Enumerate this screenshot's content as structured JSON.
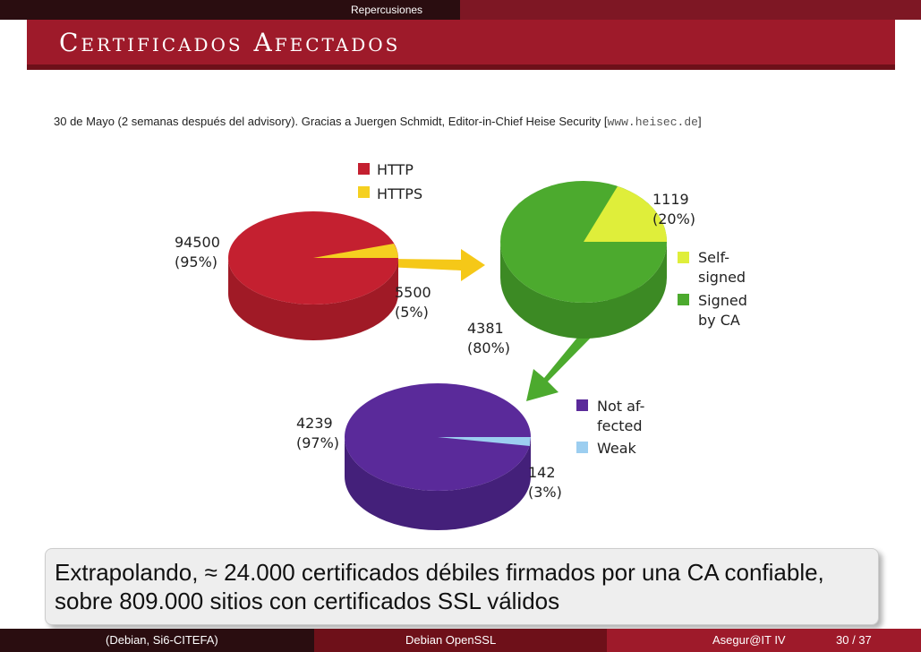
{
  "header": {
    "section": "Repercusiones"
  },
  "title": "Certificados Afectados",
  "subtitle": {
    "text": "30 de Mayo (2 semanas después del advisory). Gracias a Juergen Schmidt, Editor-in-Chief Heise Security [",
    "url": "www.heisec.de",
    "close": "]"
  },
  "chart_data": [
    {
      "type": "pie",
      "slices": [
        {
          "label": "HTTP",
          "value": 94500,
          "value_label": "94500",
          "pct_label": "(95%)",
          "color": "#c42030"
        },
        {
          "label": "HTTPS",
          "value": 5500,
          "value_label": "5500",
          "pct_label": "(5%)",
          "color": "#f5d020"
        }
      ],
      "legend": [
        "HTTP",
        "HTTPS"
      ]
    },
    {
      "type": "pie",
      "slices": [
        {
          "label": "Self-signed",
          "value": 1119,
          "value_label": "1119",
          "pct_label": "(20%)",
          "color": "#dfee3a"
        },
        {
          "label": "Signed by CA",
          "value": 4381,
          "value_label": "4381",
          "pct_label": "(80%)",
          "color": "#4caa2e"
        }
      ],
      "legend_lines": [
        [
          "Self-",
          "signed"
        ],
        [
          "Signed",
          "by CA"
        ]
      ]
    },
    {
      "type": "pie",
      "slices": [
        {
          "label": "Not affected",
          "value": 4239,
          "value_label": "4239",
          "pct_label": "(97%)",
          "color": "#5a2a9a"
        },
        {
          "label": "Weak",
          "value": 142,
          "value_label": "142",
          "pct_label": "(3%)",
          "color": "#9ccef0"
        }
      ],
      "legend_lines": [
        [
          "Not af-",
          "fected"
        ],
        [
          "Weak"
        ]
      ]
    }
  ],
  "callout": {
    "text": "Extrapolando, ≈ 24.000 certificados débiles firmados por una CA confiable, sobre 809.000 sitios con certificados SSL válidos"
  },
  "footer": {
    "left": "(Debian, Si6-CITEFA)",
    "center": "Debian OpenSSL",
    "right": "Asegur@IT IV",
    "page": "30 / 37"
  }
}
